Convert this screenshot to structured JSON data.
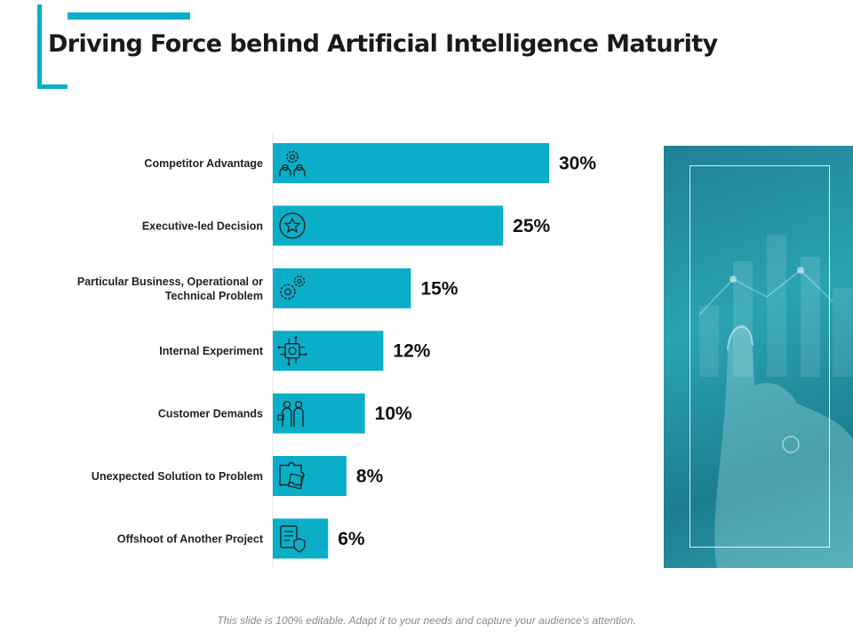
{
  "slide": {
    "title": "Driving Force behind Artificial Intelligence Maturity",
    "footer": "This slide is 100% editable. Adapt it to your needs and capture your audience's attention."
  },
  "colors": {
    "accent": "#0aaec8",
    "bar": "#0aaec8",
    "text": "#1a1a1a"
  },
  "chart_data": {
    "type": "bar",
    "orientation": "horizontal",
    "title": "",
    "xlabel": "",
    "ylabel": "",
    "xlim": [
      0,
      30
    ],
    "unit": "%",
    "categories": [
      "Competitor Advantage",
      "Executive-led Decision",
      "Particular Business, Operational or\nTechnical Problem",
      "Internal Experiment",
      "Customer Demands",
      "Unexpected Solution to Problem",
      "Offshoot of Another Project"
    ],
    "values": [
      30,
      25,
      15,
      12,
      10,
      8,
      6
    ],
    "value_labels": [
      "30%",
      "25%",
      "15%",
      "12%",
      "10%",
      "8%",
      "6%"
    ],
    "icons": [
      "team-gear-icon",
      "star-badge-icon",
      "gears-icon",
      "circuit-brain-icon",
      "people-icon",
      "puzzle-icon",
      "document-shield-icon"
    ]
  }
}
